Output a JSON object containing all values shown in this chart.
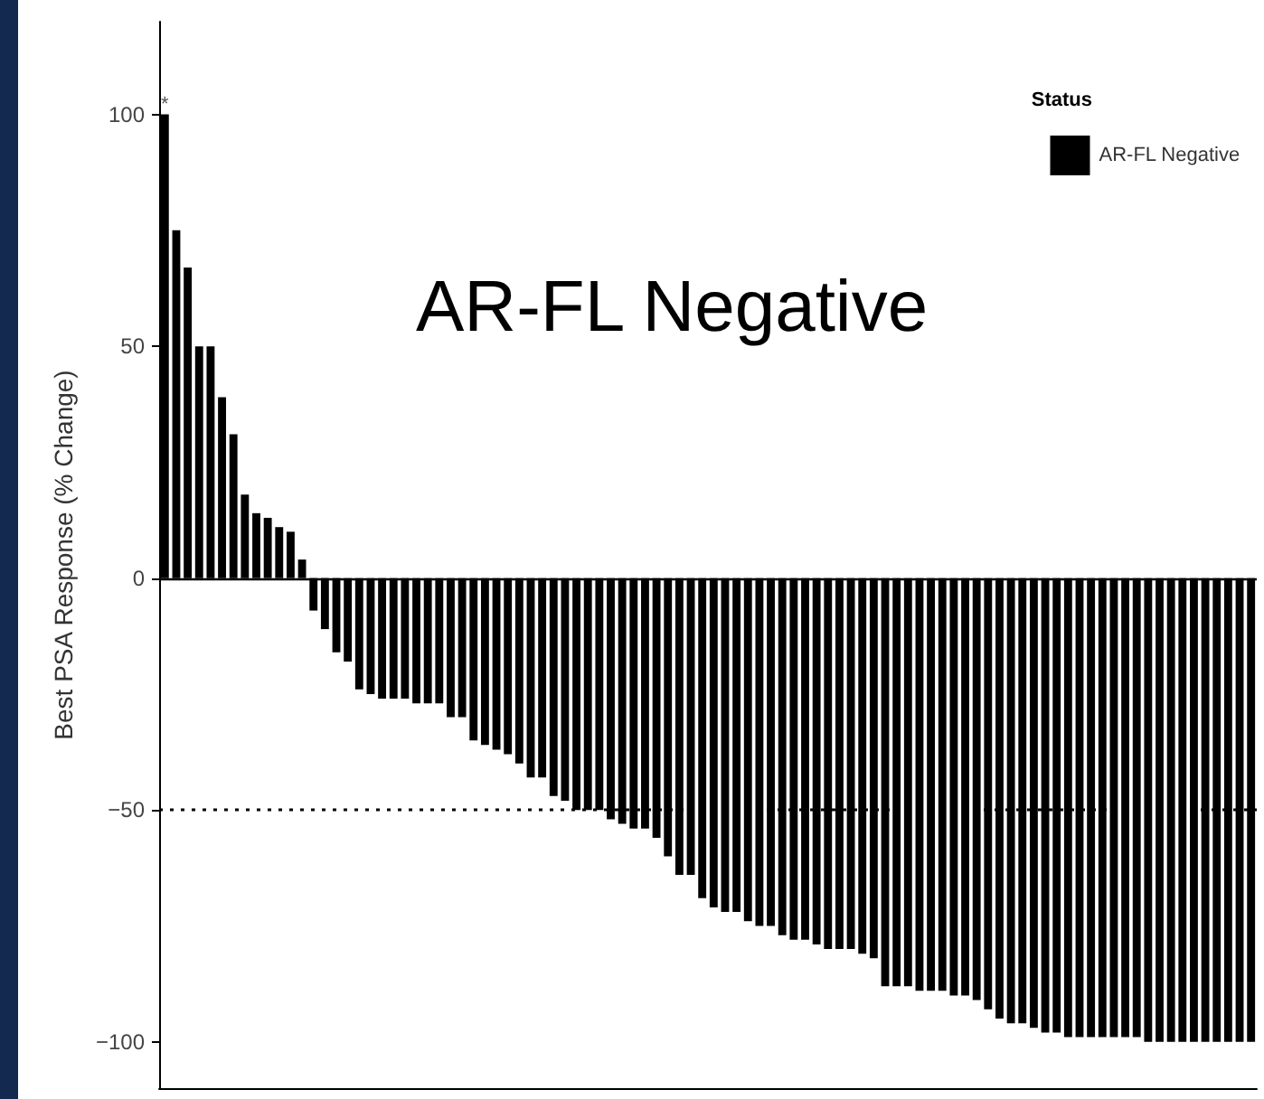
{
  "chart_data": {
    "type": "bar",
    "ylabel": "Best PSA Response (% Change)",
    "legend_title": "Status",
    "annotations": [
      "AR-FL Negative"
    ],
    "categories": [
      null,
      null,
      null,
      null,
      null,
      null,
      null,
      null,
      null,
      null,
      null,
      null,
      null,
      null,
      null,
      null,
      null,
      null,
      null,
      null,
      null,
      null,
      null,
      null,
      null,
      null,
      null,
      null,
      null,
      null,
      null,
      null,
      null,
      null,
      null,
      null,
      null,
      null,
      null,
      null,
      null,
      null,
      null,
      null,
      null,
      null,
      null,
      null,
      null,
      null,
      null,
      null,
      null,
      null,
      null,
      null,
      null,
      null,
      null,
      null,
      null,
      null,
      null,
      null,
      null,
      null,
      null,
      null,
      null,
      null,
      null,
      null,
      null,
      null,
      null,
      null,
      null,
      null,
      null,
      null,
      null,
      null,
      null,
      null,
      null,
      null,
      null,
      null,
      null,
      null,
      null,
      null,
      null,
      null,
      null,
      null
    ],
    "series": [
      {
        "name": "AR-FL Negative",
        "color": "#000000",
        "values": [
          100,
          75,
          67,
          50,
          50,
          39,
          31,
          18,
          14,
          13,
          11,
          10,
          4,
          -7,
          -11,
          -16,
          -18,
          -24,
          -25,
          -26,
          -26,
          -26,
          -27,
          -27,
          -27,
          -30,
          -30,
          -35,
          -36,
          -37,
          -38,
          -40,
          -43,
          -43,
          -47,
          -48,
          -50,
          -50,
          -50,
          -52,
          -53,
          -54,
          -54,
          -56,
          -60,
          -64,
          -64,
          -69,
          -71,
          -72,
          -72,
          -74,
          -75,
          -75,
          -77,
          -78,
          -78,
          -79,
          -80,
          -80,
          -80,
          -81,
          -82,
          -88,
          -88,
          -88,
          -89,
          -89,
          -89,
          -90,
          -90,
          -91,
          -93,
          -95,
          -96,
          -96,
          -97,
          -98,
          -98,
          -99,
          -99,
          -99,
          -99,
          -99,
          -99,
          -99,
          -100,
          -100,
          -100,
          -100,
          -100,
          -100,
          -100,
          -100,
          -100,
          -100
        ],
        "value_labels": [
          "*",
          null,
          null,
          null,
          null,
          null,
          null,
          null,
          null,
          null,
          null,
          null,
          null,
          null,
          null,
          null,
          null,
          null,
          null,
          null,
          null,
          null,
          null,
          null,
          null,
          null,
          null,
          null,
          null,
          null,
          null,
          null,
          null,
          null,
          null,
          null,
          null,
          null,
          null,
          null,
          null,
          null,
          null,
          null,
          null,
          null,
          null,
          null,
          null,
          null,
          null,
          null,
          null,
          null,
          null,
          null,
          null,
          null,
          null,
          null,
          null,
          null,
          null,
          null,
          null,
          null,
          null,
          null,
          null,
          null,
          null,
          null,
          null,
          null,
          null,
          null,
          null,
          null,
          null,
          null,
          null,
          null,
          null,
          null,
          null,
          null,
          null,
          null,
          null,
          null,
          null,
          null,
          null,
          null,
          null,
          null
        ]
      }
    ],
    "ylim": [
      -110,
      120
    ],
    "yticks": [
      -100,
      -50,
      0,
      50,
      100
    ],
    "ref_lines": [
      {
        "axis": "y",
        "value": 0,
        "line_style": "solid",
        "color": "#000000"
      },
      {
        "axis": "y",
        "value": -50,
        "line_style": "dotted",
        "color": "#000000"
      }
    ],
    "tick_labels": "y",
    "grid": false,
    "legend": "top right"
  }
}
